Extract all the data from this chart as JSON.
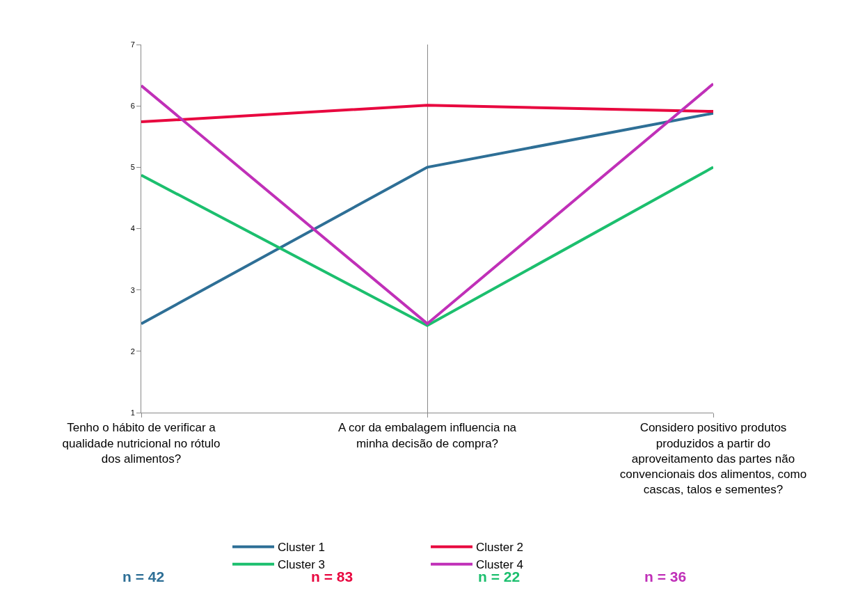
{
  "chart_data": {
    "type": "line",
    "categories": [
      "Tenho o hábito de verificar a qualidade nutricional no rótulo dos alimentos?",
      "A cor da embalagem influencia na minha decisão de compra?",
      "Considero positivo produtos produzidos a partir do aproveitamento das partes não convencionais dos alimentos, como cascas, talos e sementes?"
    ],
    "series": [
      {
        "name": "Cluster 1",
        "color": "#2e6f96",
        "values": [
          2.45,
          5.0,
          5.88
        ]
      },
      {
        "name": "Cluster 2",
        "color": "#e8073f",
        "values": [
          5.74,
          6.01,
          5.91
        ]
      },
      {
        "name": "Cluster 3",
        "color": "#1cbf6e",
        "values": [
          4.87,
          2.42,
          5.0
        ]
      },
      {
        "name": "Cluster 4",
        "color": "#c030b8",
        "values": [
          6.33,
          2.45,
          6.36
        ]
      }
    ],
    "ylim": [
      1,
      7
    ],
    "yticks": [
      1,
      2,
      3,
      4,
      5,
      6,
      7
    ],
    "grid": "x",
    "legend": "bottom",
    "marker": "none",
    "line_style": "solid",
    "annotations": [
      "n = 42",
      "n = 83",
      "n = 22",
      "n = 36"
    ]
  }
}
